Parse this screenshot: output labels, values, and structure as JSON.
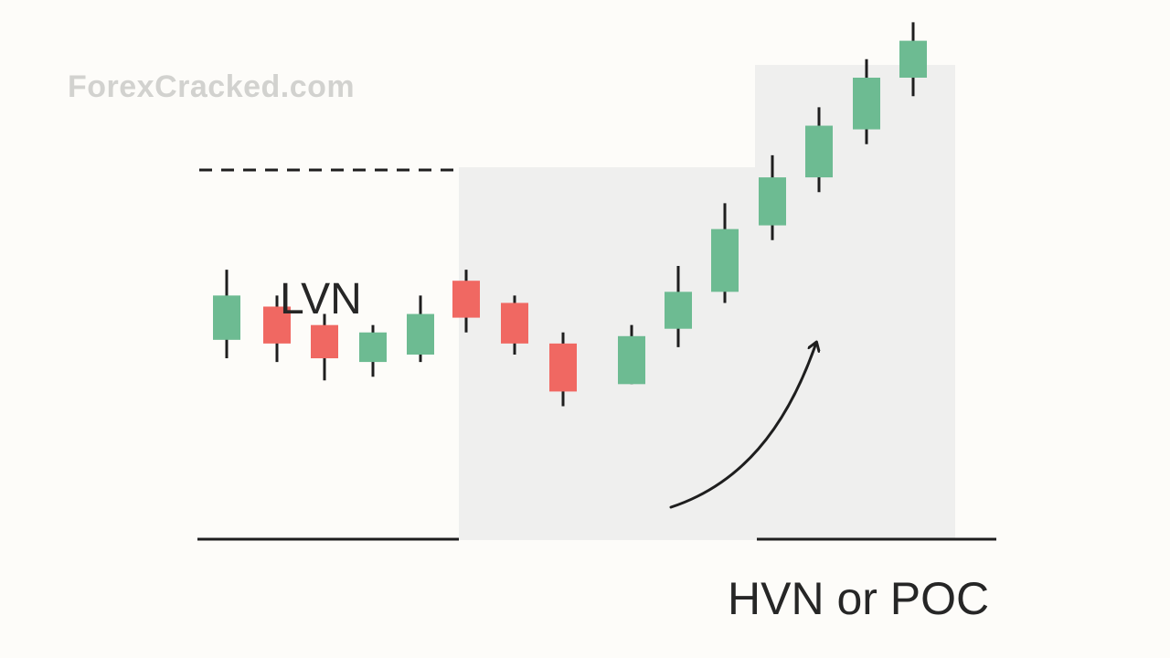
{
  "watermark": "ForexCracked.com",
  "labels": {
    "lvn": "LVN",
    "hvn": "HVN or POC"
  },
  "colors": {
    "background": "#fdfcf9",
    "zone_fill": "#efefee",
    "bullish": "#6dbb92",
    "bearish": "#f06862",
    "ink": "#1e1e1e"
  },
  "chart_data": {
    "type": "candlestick",
    "candles": [
      {
        "open": 0.66,
        "close": 0.54,
        "high": 0.73,
        "low": 0.49,
        "direction": "up"
      },
      {
        "open": 0.53,
        "close": 0.63,
        "high": 0.66,
        "low": 0.48,
        "direction": "down"
      },
      {
        "open": 0.49,
        "close": 0.58,
        "high": 0.61,
        "low": 0.43,
        "direction": "down"
      },
      {
        "open": 0.48,
        "close": 0.56,
        "high": 0.58,
        "low": 0.44,
        "direction": "up"
      },
      {
        "open": 0.61,
        "close": 0.5,
        "high": 0.66,
        "low": 0.48,
        "direction": "up"
      },
      {
        "open": 0.7,
        "close": 0.6,
        "high": 0.73,
        "low": 0.56,
        "direction": "down"
      },
      {
        "open": 0.53,
        "close": 0.64,
        "high": 0.66,
        "low": 0.5,
        "direction": "down"
      },
      {
        "open": 0.4,
        "close": 0.53,
        "high": 0.56,
        "low": 0.36,
        "direction": "down"
      },
      {
        "open": 0.55,
        "close": 0.42,
        "high": 0.58,
        "low": 0.42,
        "direction": "up"
      },
      {
        "open": 0.67,
        "close": 0.57,
        "high": 0.74,
        "low": 0.52,
        "direction": "up"
      },
      {
        "open": 0.84,
        "close": 0.67,
        "high": 0.91,
        "low": 0.64,
        "direction": "up"
      },
      {
        "open": 0.98,
        "close": 0.85,
        "high": 1.04,
        "low": 0.81,
        "direction": "up"
      },
      {
        "open": 1.12,
        "close": 0.98,
        "high": 1.17,
        "low": 0.94,
        "direction": "up"
      },
      {
        "open": 1.25,
        "close": 1.11,
        "high": 1.3,
        "low": 1.07,
        "direction": "up"
      },
      {
        "open": 1.35,
        "close": 1.25,
        "high": 1.4,
        "low": 1.2,
        "direction": "up"
      }
    ],
    "levels": [
      {
        "value": 1.0,
        "style": "dashed"
      },
      {
        "value": 0.0,
        "style": "solid"
      }
    ]
  }
}
